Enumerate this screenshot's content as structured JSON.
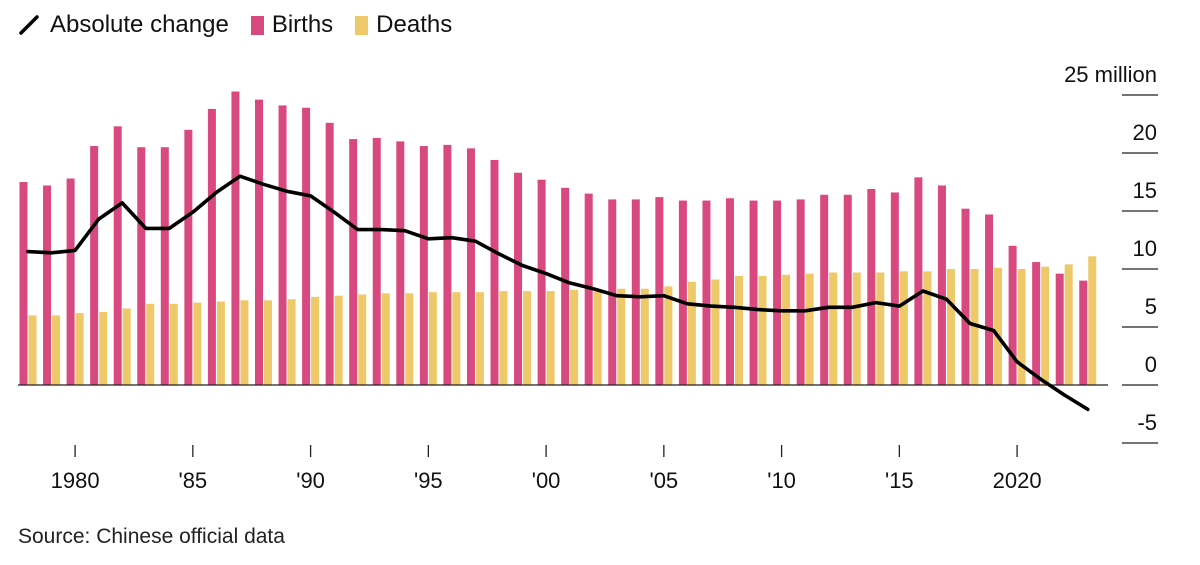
{
  "legend": {
    "line_label": "Absolute change",
    "births_label": "Births",
    "deaths_label": "Deaths"
  },
  "colors": {
    "births": "#d8497f",
    "deaths": "#eec96a",
    "line": "#000000"
  },
  "source": "Source: Chinese official data",
  "chart_data": {
    "type": "bar",
    "years": [
      1978,
      1979,
      1980,
      1981,
      1982,
      1983,
      1984,
      1985,
      1986,
      1987,
      1988,
      1989,
      1990,
      1991,
      1992,
      1993,
      1994,
      1995,
      1996,
      1997,
      1998,
      1999,
      2000,
      2001,
      2002,
      2003,
      2004,
      2005,
      2006,
      2007,
      2008,
      2009,
      2010,
      2011,
      2012,
      2013,
      2014,
      2015,
      2016,
      2017,
      2018,
      2019,
      2020,
      2021,
      2022,
      2023
    ],
    "series": [
      {
        "name": "Births",
        "kind": "bar",
        "values": [
          17.5,
          17.2,
          17.8,
          20.6,
          22.3,
          20.5,
          20.5,
          22.0,
          23.8,
          25.3,
          24.6,
          24.1,
          23.9,
          22.6,
          21.2,
          21.3,
          21.0,
          20.6,
          20.7,
          20.4,
          19.4,
          18.3,
          17.7,
          17.0,
          16.5,
          16.0,
          16.0,
          16.2,
          15.9,
          15.9,
          16.1,
          15.9,
          15.9,
          16.0,
          16.4,
          16.4,
          16.9,
          16.6,
          17.9,
          17.2,
          15.2,
          14.7,
          12.0,
          10.6,
          9.6,
          9.0
        ]
      },
      {
        "name": "Deaths",
        "kind": "bar",
        "values": [
          6.0,
          6.0,
          6.2,
          6.3,
          6.6,
          7.0,
          7.0,
          7.1,
          7.2,
          7.3,
          7.3,
          7.4,
          7.6,
          7.7,
          7.8,
          7.9,
          7.9,
          8.0,
          8.0,
          8.0,
          8.1,
          8.1,
          8.1,
          8.2,
          8.2,
          8.3,
          8.3,
          8.5,
          8.9,
          9.1,
          9.4,
          9.4,
          9.5,
          9.6,
          9.7,
          9.7,
          9.7,
          9.8,
          9.8,
          10.0,
          10.0,
          10.1,
          10.0,
          10.2,
          10.4,
          11.1
        ]
      },
      {
        "name": "Absolute change",
        "kind": "line",
        "values": [
          11.5,
          11.4,
          11.6,
          14.3,
          15.7,
          13.5,
          13.5,
          14.9,
          16.6,
          18.0,
          17.3,
          16.7,
          16.3,
          14.9,
          13.4,
          13.4,
          13.3,
          12.6,
          12.7,
          12.4,
          11.3,
          10.3,
          9.6,
          8.8,
          8.3,
          7.7,
          7.6,
          7.7,
          7.0,
          6.8,
          6.7,
          6.5,
          6.4,
          6.4,
          6.7,
          6.7,
          7.1,
          6.8,
          8.1,
          7.4,
          5.3,
          4.7,
          2.0,
          0.5,
          -0.85,
          -2.1
        ]
      }
    ],
    "x_ticks": [
      {
        "year": 1980,
        "label": "1980"
      },
      {
        "year": 1985,
        "label": "'85"
      },
      {
        "year": 1990,
        "label": "'90"
      },
      {
        "year": 1995,
        "label": "'95"
      },
      {
        "year": 2000,
        "label": "'00"
      },
      {
        "year": 2005,
        "label": "'05"
      },
      {
        "year": 2010,
        "label": "'10"
      },
      {
        "year": 2015,
        "label": "'15"
      },
      {
        "year": 2020,
        "label": "2020"
      }
    ],
    "y_ticks": [
      {
        "value": 25,
        "label": "25 million"
      },
      {
        "value": 20,
        "label": "20"
      },
      {
        "value": 15,
        "label": "15"
      },
      {
        "value": 10,
        "label": "10"
      },
      {
        "value": 5,
        "label": "5"
      },
      {
        "value": 0,
        "label": "0"
      },
      {
        "value": -5,
        "label": "-5"
      }
    ],
    "ylim": [
      -5,
      25
    ],
    "unit": "million"
  }
}
